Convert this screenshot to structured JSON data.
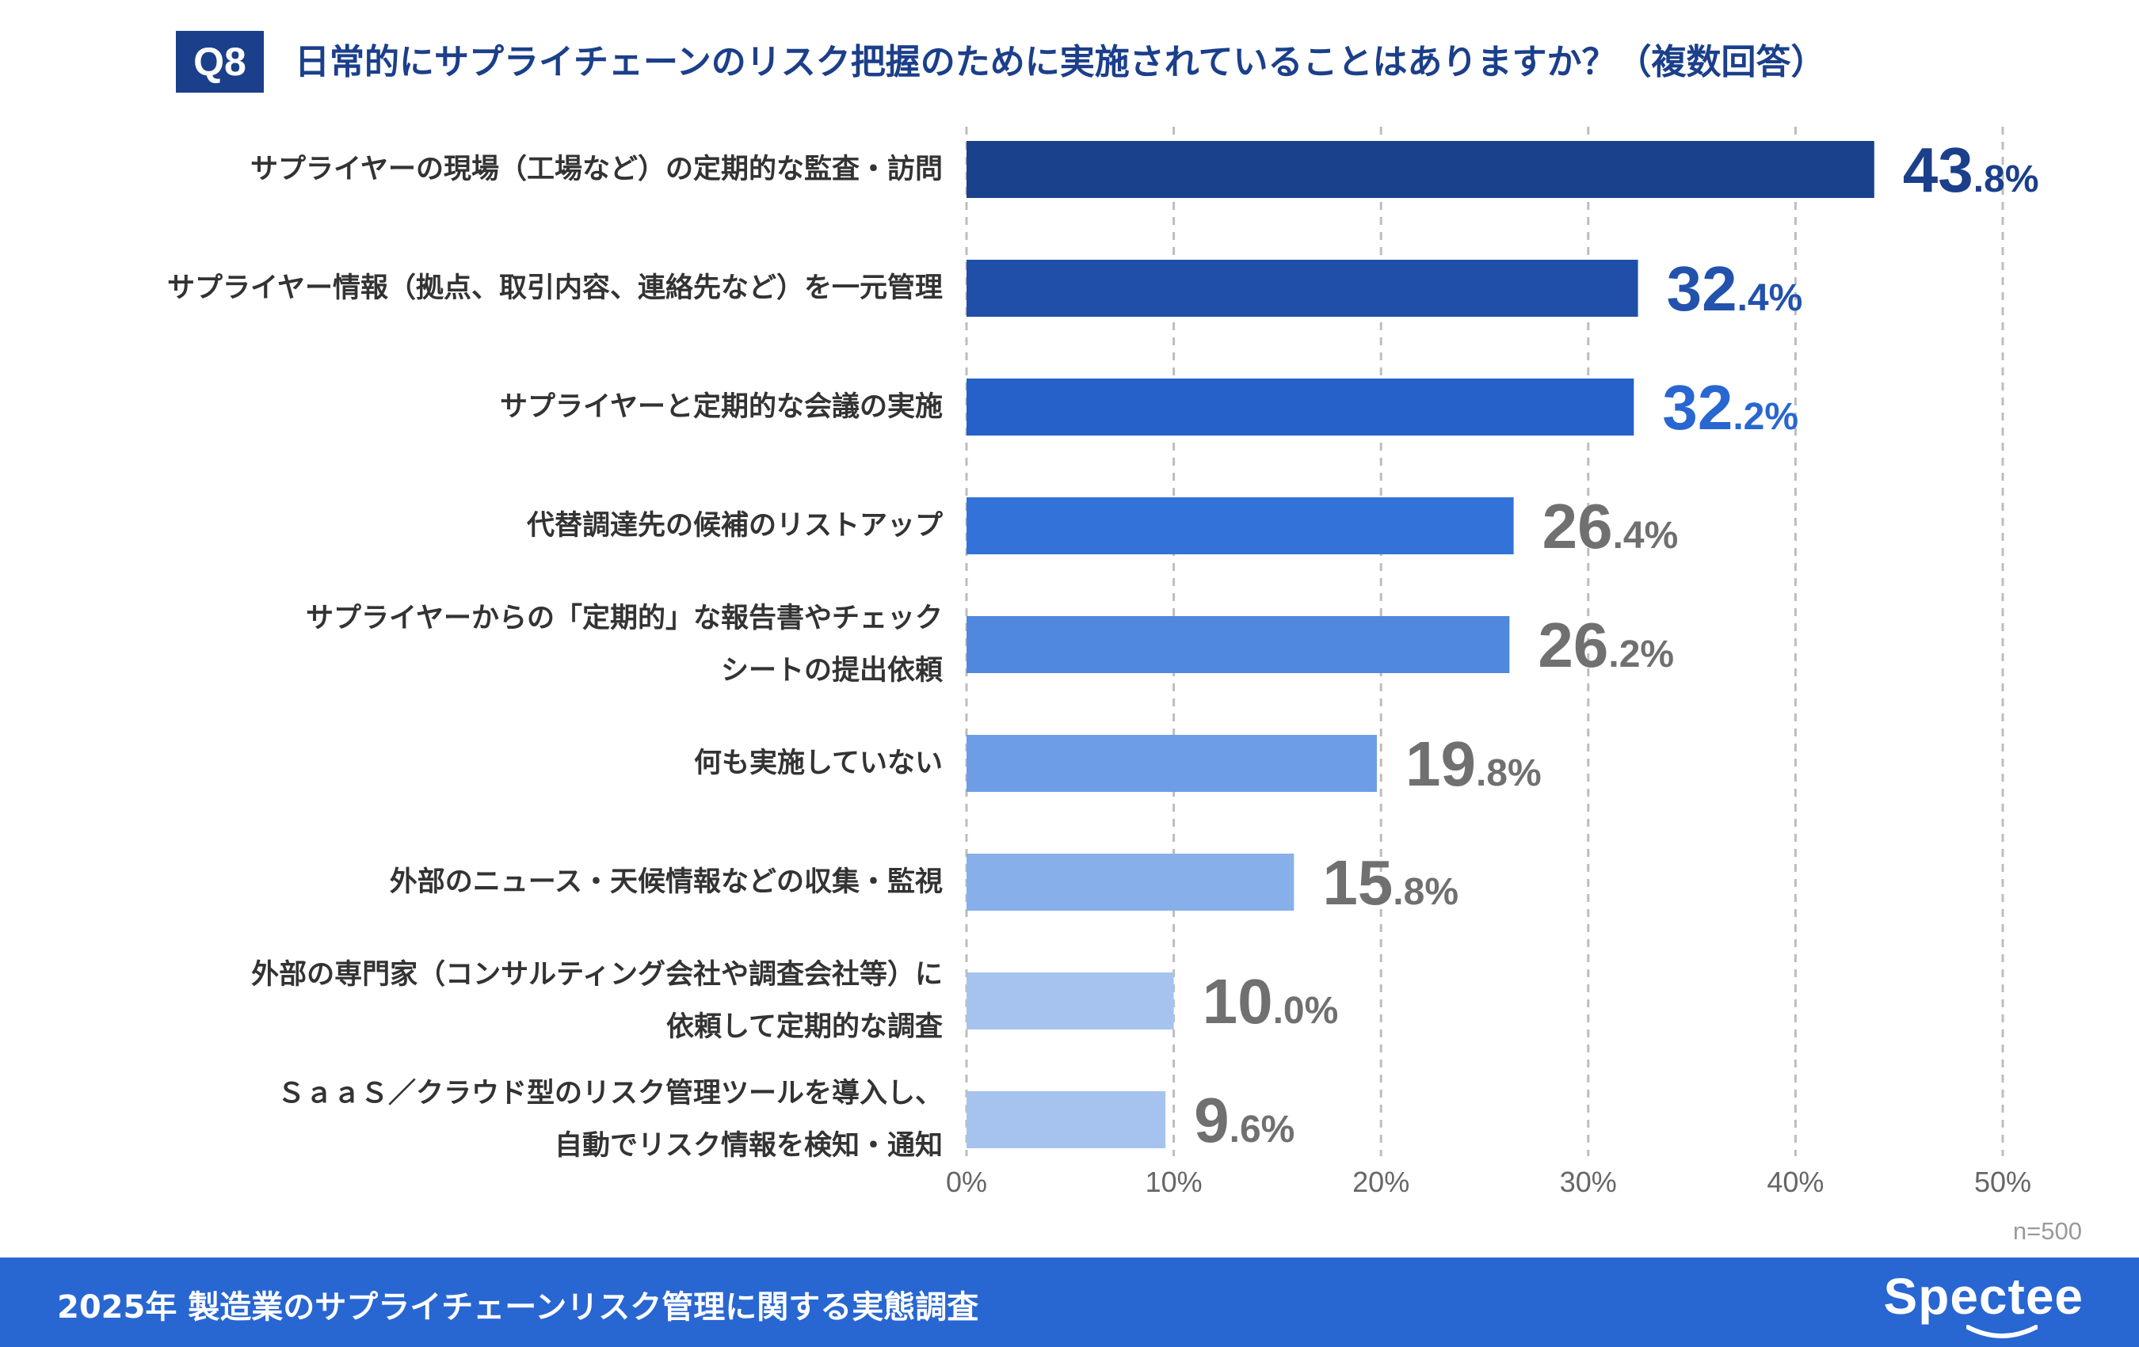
{
  "question": {
    "badge": "Q8",
    "title": "日常的にサプライチェーンのリスク把握のために実施されていることはありますか？（複数回答）"
  },
  "chart_data": {
    "type": "bar",
    "orientation": "horizontal",
    "title": "日常的にサプライチェーンのリスク把握のために実施されていることはありますか？（複数回答）",
    "categories": [
      [
        "サプライヤーの現場（工場など）の定期的な監査・訪問"
      ],
      [
        "サプライヤー情報（拠点、取引内容、連絡先など）を一元管理"
      ],
      [
        "サプライヤーと定期的な会議の実施"
      ],
      [
        "代替調達先の候補のリストアップ"
      ],
      [
        "サプライヤーからの「定期的」な報告書やチェック",
        "シートの提出依頼"
      ],
      [
        "何も実施していない"
      ],
      [
        "外部のニュース・天候情報などの収集・監視"
      ],
      [
        "外部の専門家（コンサルティング会社や調査会社等）に",
        "依頼して定期的な調査"
      ],
      [
        "ＳａａＳ／クラウド型のリスク管理ツールを導入し、",
        "自動でリスク情報を検知・通知"
      ]
    ],
    "values": [
      43.8,
      32.4,
      32.2,
      26.4,
      26.2,
      19.8,
      15.8,
      10.0,
      9.6
    ],
    "value_labels": [
      {
        "int": "43",
        "dec": ".8%"
      },
      {
        "int": "32",
        "dec": ".4%"
      },
      {
        "int": "32",
        "dec": ".2%"
      },
      {
        "int": "26",
        "dec": ".4%"
      },
      {
        "int": "26",
        "dec": ".2%"
      },
      {
        "int": "19",
        "dec": ".8%"
      },
      {
        "int": "15",
        "dec": ".8%"
      },
      {
        "int": "10",
        "dec": ".0%"
      },
      {
        "int": "9",
        "dec": ".6%"
      }
    ],
    "bar_colors": [
      "#1a418c",
      "#1f4fa8",
      "#2660c9",
      "#3373d9",
      "#5088e0",
      "#6d9de6",
      "#87afea",
      "#a6c3f0",
      "#a6c3f0"
    ],
    "value_label_colors": [
      "#1b3f8a",
      "#2352ad",
      "#2866d2",
      "#707070",
      "#707070",
      "#707070",
      "#707070",
      "#707070",
      "#707070"
    ],
    "xlim": [
      0,
      50
    ],
    "x_ticks": [
      "0%",
      "10%",
      "20%",
      "30%",
      "40%",
      "50%"
    ],
    "grid": true,
    "xlabel": "",
    "ylabel": ""
  },
  "sample_size": "n=500",
  "footer": {
    "title": "2025年 製造業のサプライチェーンリスク管理に関する実態調査",
    "brand": "Spectee"
  }
}
